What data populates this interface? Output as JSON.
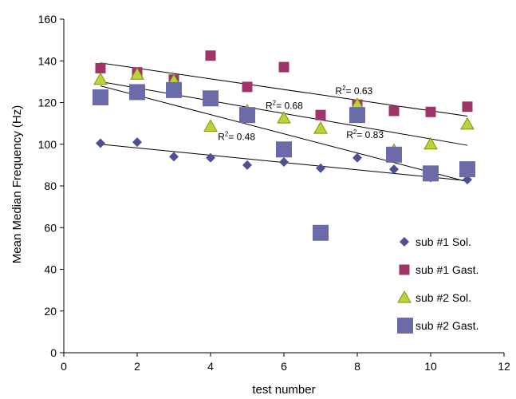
{
  "chart_data": {
    "type": "scatter",
    "title": "",
    "xlabel": "test number",
    "ylabel": "Mean Median Frequency (Hz)",
    "xlim": [
      0,
      12
    ],
    "ylim": [
      0,
      160
    ],
    "xticks": [
      0,
      2,
      4,
      6,
      8,
      10,
      12
    ],
    "yticks": [
      0,
      20,
      40,
      60,
      80,
      100,
      120,
      140,
      160
    ],
    "grid": false,
    "legend_position": "bottom-right",
    "series": [
      {
        "name": "sub #1 Sol.",
        "marker": "diamond",
        "color": "#4F4F96",
        "x": [
          1,
          2,
          3,
          4,
          5,
          6,
          7,
          8,
          9,
          10,
          11
        ],
        "y": [
          100.5,
          101,
          94,
          93.5,
          90,
          91.5,
          88.5,
          93.5,
          88,
          84,
          83
        ],
        "trend": {
          "y_start": 100,
          "y_end": 82.5,
          "r2_label": "0.48",
          "label_x": 4.2,
          "label_y": 102
        }
      },
      {
        "name": "sub #1 Gast.",
        "marker": "square",
        "color": "#A0336A",
        "x": [
          1,
          2,
          3,
          4,
          5,
          6,
          7,
          8,
          9,
          10,
          11
        ],
        "y": [
          136.5,
          134.5,
          131,
          142.5,
          127.5,
          137,
          114,
          119,
          116,
          115.5,
          118
        ],
        "trend": {
          "y_start": 139,
          "y_end": 113.5,
          "r2_label": "0.63",
          "label_x": 7.4,
          "label_y": 124
        }
      },
      {
        "name": "sub #2 Sol.",
        "marker": "triangle",
        "color": "#B5D63A",
        "stroke": "#8E8E00",
        "x": [
          1,
          2,
          3,
          4,
          5,
          6,
          7,
          8,
          9,
          10,
          11
        ],
        "y": [
          131,
          133.5,
          130.5,
          108.5,
          116,
          112.5,
          107.5,
          119,
          97,
          100,
          109.5
        ],
        "trend": {
          "y_start": 130,
          "y_end": 99.5,
          "r2_label": "0.68",
          "label_x": 5.5,
          "label_y": 117
        }
      },
      {
        "name": "sub #2 Gast.",
        "marker": "square-large",
        "color": "#6B6BAA",
        "x": [
          1,
          2,
          3,
          4,
          5,
          6,
          7,
          8,
          9,
          10,
          11
        ],
        "y": [
          122.5,
          125,
          126,
          122,
          114,
          97.5,
          57.5,
          114,
          95,
          86,
          88
        ],
        "trend": {
          "y_start": 128,
          "y_end": 82,
          "r2_label": "0.83",
          "label_x": 7.7,
          "label_y": 103
        }
      }
    ]
  }
}
